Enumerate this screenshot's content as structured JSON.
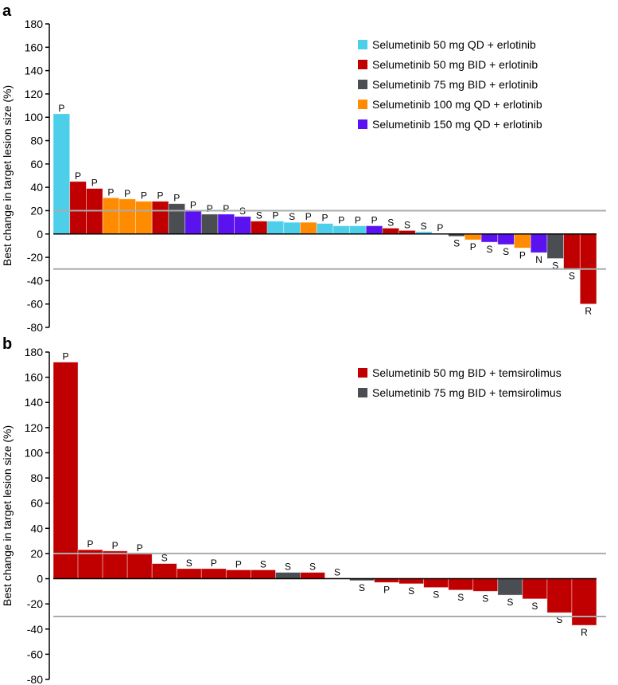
{
  "colors": {
    "50QD": "#4dcfea",
    "50BID": "#c00000",
    "75BID": "#4a4d52",
    "100QD": "#ff8c00",
    "150QD": "#5a12f0",
    "refline": "#a9adad"
  },
  "chart_data": [
    {
      "type": "bar",
      "panel": "a",
      "ylabel": "Best change in target lesion size (%)",
      "ylim": [
        -80,
        180
      ],
      "yticks": [
        180,
        160,
        140,
        120,
        100,
        80,
        60,
        40,
        20,
        0,
        -20,
        -40,
        -60,
        -80
      ],
      "reference_lines": [
        20,
        -30
      ],
      "legend_position": "top-right",
      "legend": [
        {
          "key": "50QD",
          "label": "Selumetinib 50 mg QD + erlotinib"
        },
        {
          "key": "50BID",
          "label": "Selumetinib 50 mg BID + erlotinib"
        },
        {
          "key": "75BID",
          "label": "Selumetinib 75 mg BID + erlotinib"
        },
        {
          "key": "100QD",
          "label": "Selumetinib 100 mg QD + erlotinib"
        },
        {
          "key": "150QD",
          "label": "Selumetinib 150 mg QD + erlotinib"
        }
      ],
      "bars": [
        {
          "value": 103,
          "group": "50QD",
          "label": "P"
        },
        {
          "value": 45,
          "group": "50BID",
          "label": "P"
        },
        {
          "value": 39,
          "group": "50BID",
          "label": "P"
        },
        {
          "value": 31,
          "group": "100QD",
          "label": "P"
        },
        {
          "value": 30,
          "group": "100QD",
          "label": "P"
        },
        {
          "value": 28,
          "group": "100QD",
          "label": "P"
        },
        {
          "value": 28,
          "group": "50BID",
          "label": "P"
        },
        {
          "value": 26,
          "group": "75BID",
          "label": "P"
        },
        {
          "value": 20,
          "group": "150QD",
          "label": "P"
        },
        {
          "value": 17,
          "group": "75BID",
          "label": "P"
        },
        {
          "value": 17,
          "group": "150QD",
          "label": "P"
        },
        {
          "value": 15,
          "group": "150QD",
          "label": "S"
        },
        {
          "value": 11,
          "group": "50BID",
          "label": "S"
        },
        {
          "value": 11,
          "group": "50QD",
          "label": "P"
        },
        {
          "value": 10,
          "group": "50QD",
          "label": "S"
        },
        {
          "value": 10,
          "group": "100QD",
          "label": "P"
        },
        {
          "value": 9,
          "group": "50QD",
          "label": "P"
        },
        {
          "value": 7,
          "group": "50QD",
          "label": "P"
        },
        {
          "value": 7,
          "group": "50QD",
          "label": "P"
        },
        {
          "value": 7,
          "group": "150QD",
          "label": "P"
        },
        {
          "value": 5,
          "group": "50BID",
          "label": "S"
        },
        {
          "value": 3,
          "group": "50BID",
          "label": "S"
        },
        {
          "value": 2,
          "group": "50QD",
          "label": "S"
        },
        {
          "value": 0.5,
          "group": "100QD",
          "label": "P"
        },
        {
          "value": -2,
          "group": "75BID",
          "label": "S"
        },
        {
          "value": -5,
          "group": "100QD",
          "label": "P"
        },
        {
          "value": -7,
          "group": "150QD",
          "label": "S"
        },
        {
          "value": -9,
          "group": "150QD",
          "label": "S"
        },
        {
          "value": -12,
          "group": "100QD",
          "label": "P"
        },
        {
          "value": -16,
          "group": "150QD",
          "label": "N"
        },
        {
          "value": -21,
          "group": "75BID",
          "label": "S"
        },
        {
          "value": -30,
          "group": "50BID",
          "label": "S"
        },
        {
          "value": -60,
          "group": "50BID",
          "label": "R"
        }
      ]
    },
    {
      "type": "bar",
      "panel": "b",
      "ylabel": "Best change in target lesion size (%)",
      "ylim": [
        -80,
        180
      ],
      "yticks": [
        180,
        160,
        140,
        120,
        100,
        80,
        60,
        40,
        20,
        0,
        -20,
        -40,
        -60,
        -80
      ],
      "reference_lines": [
        20,
        -30
      ],
      "legend_position": "top-right",
      "legend": [
        {
          "key": "50BID",
          "label": "Selumetinib 50 mg BID + temsirolimus"
        },
        {
          "key": "75BID",
          "label": "Selumetinib 75 mg BID + temsirolimus"
        }
      ],
      "bars": [
        {
          "value": 172,
          "group": "50BID",
          "label": "P"
        },
        {
          "value": 23,
          "group": "50BID",
          "label": "P"
        },
        {
          "value": 22,
          "group": "50BID",
          "label": "P"
        },
        {
          "value": 20,
          "group": "50BID",
          "label": "P"
        },
        {
          "value": 12,
          "group": "50BID",
          "label": "S"
        },
        {
          "value": 8,
          "group": "50BID",
          "label": "S"
        },
        {
          "value": 8,
          "group": "50BID",
          "label": "P"
        },
        {
          "value": 7,
          "group": "50BID",
          "label": "P"
        },
        {
          "value": 7,
          "group": "50BID",
          "label": "S"
        },
        {
          "value": 5,
          "group": "75BID",
          "label": "S"
        },
        {
          "value": 5,
          "group": "50BID",
          "label": "S"
        },
        {
          "value": 0.5,
          "group": "50BID",
          "label": "S"
        },
        {
          "value": -1.5,
          "group": "75BID",
          "label": "S"
        },
        {
          "value": -3,
          "group": "50BID",
          "label": "P"
        },
        {
          "value": -4,
          "group": "50BID",
          "label": "S"
        },
        {
          "value": -7,
          "group": "50BID",
          "label": "S"
        },
        {
          "value": -9,
          "group": "50BID",
          "label": "S"
        },
        {
          "value": -10,
          "group": "50BID",
          "label": "S"
        },
        {
          "value": -13,
          "group": "75BID",
          "label": "S"
        },
        {
          "value": -16,
          "group": "50BID",
          "label": "S"
        },
        {
          "value": -27,
          "group": "50BID",
          "label": "S"
        },
        {
          "value": -37,
          "group": "50BID",
          "label": "R"
        }
      ]
    }
  ]
}
